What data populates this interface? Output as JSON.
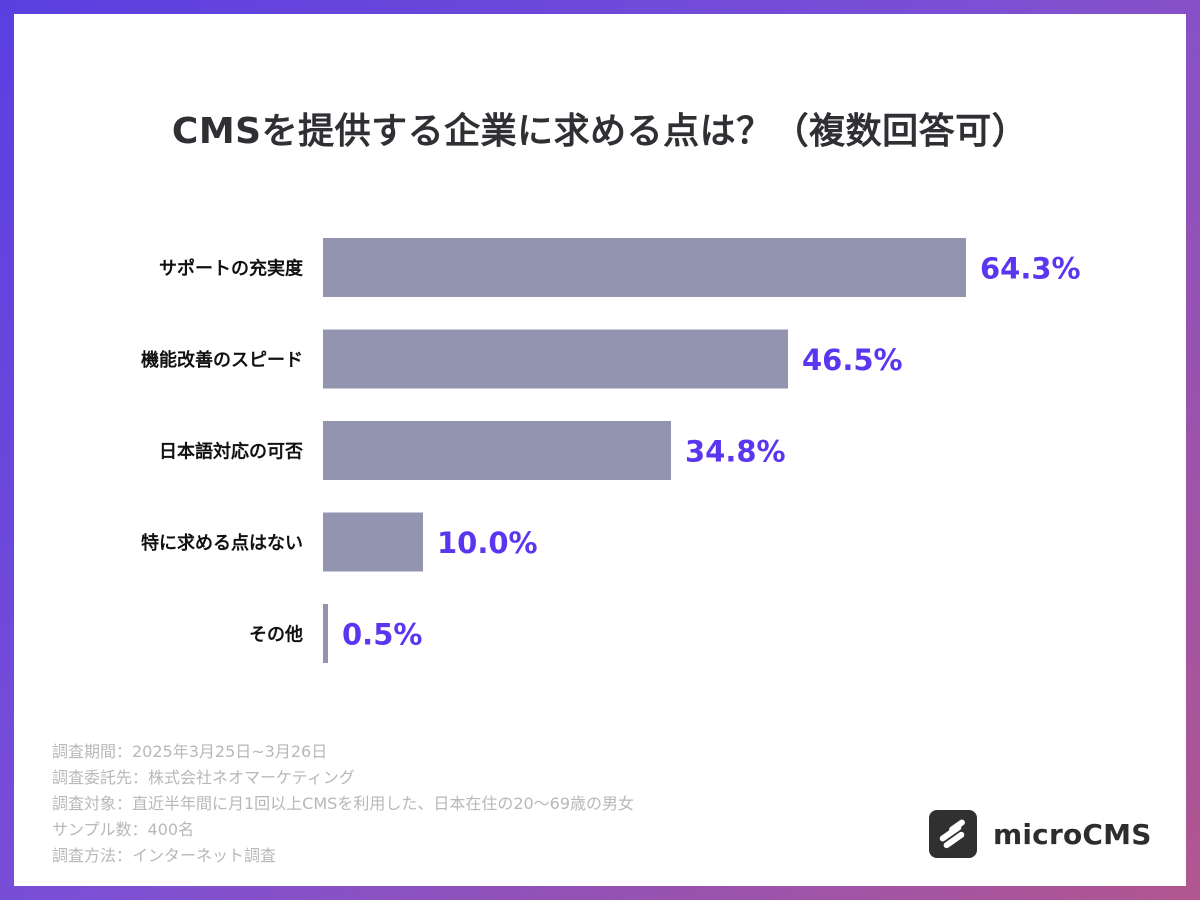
{
  "chart_data": {
    "type": "bar",
    "orientation": "horizontal",
    "title": "CMSを提供する企業に求める点は？（複数回答可）",
    "categories": [
      "サポートの充実度",
      "機能改善のスピード",
      "日本語対応の可否",
      "特に求める点はない",
      "その他"
    ],
    "values": [
      64.3,
      46.5,
      34.8,
      10.0,
      0.5
    ],
    "value_labels": [
      "64.3%",
      "46.5%",
      "34.8%",
      "10.0%",
      "0.5%"
    ],
    "xlim": [
      0,
      100
    ],
    "unit": "%",
    "grid": false,
    "legend": "none",
    "colors": {
      "bar": "#9394af",
      "value_text": "#5b36f0",
      "title_text": "#2f2f34",
      "category_text": "#111111",
      "frame_start": "#5a3fe0",
      "frame_end": "#b2568f"
    }
  },
  "notes": [
    "調査期間：2025年3月25日~3月26日",
    "調査委託先：株式会社ネオマーケティング",
    "調査対象：直近半年間に月1回以上CMSを利用した、日本在住の20〜69歳の男女",
    "サンプル数：400名",
    "調査方法：インターネット調査"
  ],
  "brand": {
    "name": "microCMS",
    "icon": "microcms-logo-icon"
  }
}
